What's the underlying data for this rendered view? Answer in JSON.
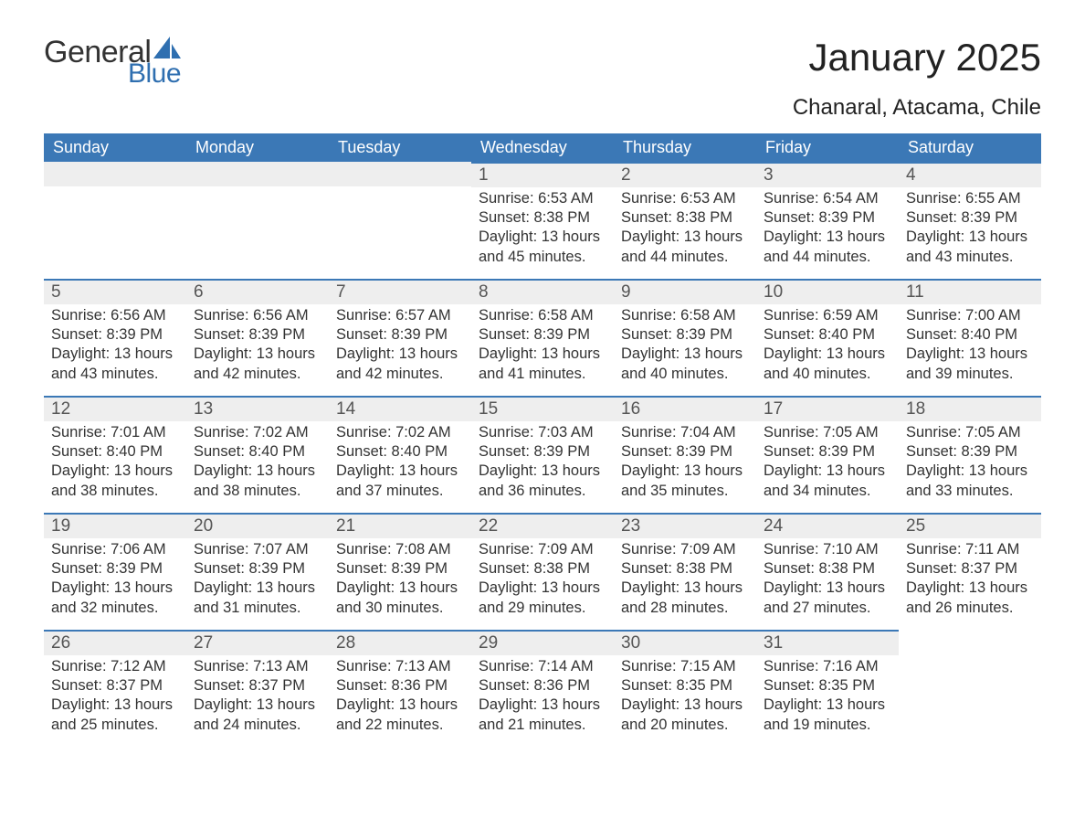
{
  "brand": {
    "word1": "General",
    "word2": "Blue",
    "sail_color": "#2f6fb0"
  },
  "title": "January 2025",
  "location": "Chanaral, Atacama, Chile",
  "header_bg": "#3b78b6",
  "header_fg": "#ffffff",
  "row_border_color": "#3b78b6",
  "daynum_bg": "#eeeeee",
  "text_color": "#333333",
  "weekdays": [
    "Sunday",
    "Monday",
    "Tuesday",
    "Wednesday",
    "Thursday",
    "Friday",
    "Saturday"
  ],
  "weeks": [
    [
      null,
      null,
      null,
      {
        "n": "1",
        "sunrise": "Sunrise: 6:53 AM",
        "sunset": "Sunset: 8:38 PM",
        "day1": "Daylight: 13 hours",
        "day2": "and 45 minutes."
      },
      {
        "n": "2",
        "sunrise": "Sunrise: 6:53 AM",
        "sunset": "Sunset: 8:38 PM",
        "day1": "Daylight: 13 hours",
        "day2": "and 44 minutes."
      },
      {
        "n": "3",
        "sunrise": "Sunrise: 6:54 AM",
        "sunset": "Sunset: 8:39 PM",
        "day1": "Daylight: 13 hours",
        "day2": "and 44 minutes."
      },
      {
        "n": "4",
        "sunrise": "Sunrise: 6:55 AM",
        "sunset": "Sunset: 8:39 PM",
        "day1": "Daylight: 13 hours",
        "day2": "and 43 minutes."
      }
    ],
    [
      {
        "n": "5",
        "sunrise": "Sunrise: 6:56 AM",
        "sunset": "Sunset: 8:39 PM",
        "day1": "Daylight: 13 hours",
        "day2": "and 43 minutes."
      },
      {
        "n": "6",
        "sunrise": "Sunrise: 6:56 AM",
        "sunset": "Sunset: 8:39 PM",
        "day1": "Daylight: 13 hours",
        "day2": "and 42 minutes."
      },
      {
        "n": "7",
        "sunrise": "Sunrise: 6:57 AM",
        "sunset": "Sunset: 8:39 PM",
        "day1": "Daylight: 13 hours",
        "day2": "and 42 minutes."
      },
      {
        "n": "8",
        "sunrise": "Sunrise: 6:58 AM",
        "sunset": "Sunset: 8:39 PM",
        "day1": "Daylight: 13 hours",
        "day2": "and 41 minutes."
      },
      {
        "n": "9",
        "sunrise": "Sunrise: 6:58 AM",
        "sunset": "Sunset: 8:39 PM",
        "day1": "Daylight: 13 hours",
        "day2": "and 40 minutes."
      },
      {
        "n": "10",
        "sunrise": "Sunrise: 6:59 AM",
        "sunset": "Sunset: 8:40 PM",
        "day1": "Daylight: 13 hours",
        "day2": "and 40 minutes."
      },
      {
        "n": "11",
        "sunrise": "Sunrise: 7:00 AM",
        "sunset": "Sunset: 8:40 PM",
        "day1": "Daylight: 13 hours",
        "day2": "and 39 minutes."
      }
    ],
    [
      {
        "n": "12",
        "sunrise": "Sunrise: 7:01 AM",
        "sunset": "Sunset: 8:40 PM",
        "day1": "Daylight: 13 hours",
        "day2": "and 38 minutes."
      },
      {
        "n": "13",
        "sunrise": "Sunrise: 7:02 AM",
        "sunset": "Sunset: 8:40 PM",
        "day1": "Daylight: 13 hours",
        "day2": "and 38 minutes."
      },
      {
        "n": "14",
        "sunrise": "Sunrise: 7:02 AM",
        "sunset": "Sunset: 8:40 PM",
        "day1": "Daylight: 13 hours",
        "day2": "and 37 minutes."
      },
      {
        "n": "15",
        "sunrise": "Sunrise: 7:03 AM",
        "sunset": "Sunset: 8:39 PM",
        "day1": "Daylight: 13 hours",
        "day2": "and 36 minutes."
      },
      {
        "n": "16",
        "sunrise": "Sunrise: 7:04 AM",
        "sunset": "Sunset: 8:39 PM",
        "day1": "Daylight: 13 hours",
        "day2": "and 35 minutes."
      },
      {
        "n": "17",
        "sunrise": "Sunrise: 7:05 AM",
        "sunset": "Sunset: 8:39 PM",
        "day1": "Daylight: 13 hours",
        "day2": "and 34 minutes."
      },
      {
        "n": "18",
        "sunrise": "Sunrise: 7:05 AM",
        "sunset": "Sunset: 8:39 PM",
        "day1": "Daylight: 13 hours",
        "day2": "and 33 minutes."
      }
    ],
    [
      {
        "n": "19",
        "sunrise": "Sunrise: 7:06 AM",
        "sunset": "Sunset: 8:39 PM",
        "day1": "Daylight: 13 hours",
        "day2": "and 32 minutes."
      },
      {
        "n": "20",
        "sunrise": "Sunrise: 7:07 AM",
        "sunset": "Sunset: 8:39 PM",
        "day1": "Daylight: 13 hours",
        "day2": "and 31 minutes."
      },
      {
        "n": "21",
        "sunrise": "Sunrise: 7:08 AM",
        "sunset": "Sunset: 8:39 PM",
        "day1": "Daylight: 13 hours",
        "day2": "and 30 minutes."
      },
      {
        "n": "22",
        "sunrise": "Sunrise: 7:09 AM",
        "sunset": "Sunset: 8:38 PM",
        "day1": "Daylight: 13 hours",
        "day2": "and 29 minutes."
      },
      {
        "n": "23",
        "sunrise": "Sunrise: 7:09 AM",
        "sunset": "Sunset: 8:38 PM",
        "day1": "Daylight: 13 hours",
        "day2": "and 28 minutes."
      },
      {
        "n": "24",
        "sunrise": "Sunrise: 7:10 AM",
        "sunset": "Sunset: 8:38 PM",
        "day1": "Daylight: 13 hours",
        "day2": "and 27 minutes."
      },
      {
        "n": "25",
        "sunrise": "Sunrise: 7:11 AM",
        "sunset": "Sunset: 8:37 PM",
        "day1": "Daylight: 13 hours",
        "day2": "and 26 minutes."
      }
    ],
    [
      {
        "n": "26",
        "sunrise": "Sunrise: 7:12 AM",
        "sunset": "Sunset: 8:37 PM",
        "day1": "Daylight: 13 hours",
        "day2": "and 25 minutes."
      },
      {
        "n": "27",
        "sunrise": "Sunrise: 7:13 AM",
        "sunset": "Sunset: 8:37 PM",
        "day1": "Daylight: 13 hours",
        "day2": "and 24 minutes."
      },
      {
        "n": "28",
        "sunrise": "Sunrise: 7:13 AM",
        "sunset": "Sunset: 8:36 PM",
        "day1": "Daylight: 13 hours",
        "day2": "and 22 minutes."
      },
      {
        "n": "29",
        "sunrise": "Sunrise: 7:14 AM",
        "sunset": "Sunset: 8:36 PM",
        "day1": "Daylight: 13 hours",
        "day2": "and 21 minutes."
      },
      {
        "n": "30",
        "sunrise": "Sunrise: 7:15 AM",
        "sunset": "Sunset: 8:35 PM",
        "day1": "Daylight: 13 hours",
        "day2": "and 20 minutes."
      },
      {
        "n": "31",
        "sunrise": "Sunrise: 7:16 AM",
        "sunset": "Sunset: 8:35 PM",
        "day1": "Daylight: 13 hours",
        "day2": "and 19 minutes."
      },
      null
    ]
  ]
}
